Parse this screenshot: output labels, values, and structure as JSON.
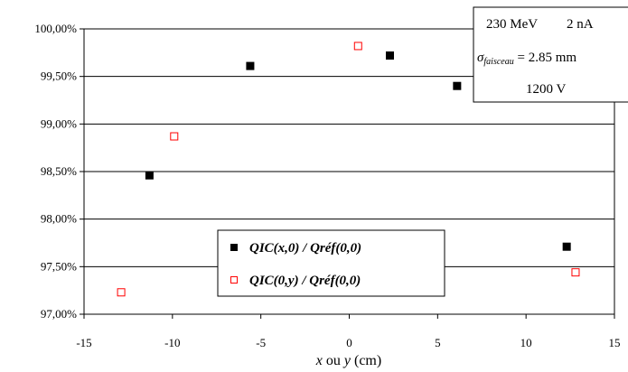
{
  "chart_data": {
    "type": "scatter",
    "x_ticks": [
      "-15",
      "-10",
      "-5",
      "0",
      "5",
      "10",
      "15"
    ],
    "y_ticks": [
      "97,00%",
      "97,50%",
      "98,00%",
      "98,50%",
      "99,00%",
      "99,50%",
      "100,00%"
    ],
    "xlim": [
      -15,
      15
    ],
    "ylim": [
      97.0,
      100.0
    ],
    "grid": {
      "horizontal": true,
      "vertical": false
    },
    "xlabel": {
      "var1": "x",
      "middle": " ou ",
      "var2": "y",
      "unit": " (cm)"
    },
    "legend_position": "bottom-center",
    "series": [
      {
        "name": "QIC(x,0) / Qréf(0,0)",
        "marker": "filled-square",
        "color": "#000000",
        "points": [
          {
            "x": -11.3,
            "y": 98.46
          },
          {
            "x": -5.6,
            "y": 99.61
          },
          {
            "x": 2.3,
            "y": 99.72
          },
          {
            "x": 6.1,
            "y": 99.4
          },
          {
            "x": 12.3,
            "y": 97.71
          }
        ]
      },
      {
        "name": "QIC(0,y) / Qréf(0,0)",
        "marker": "open-square",
        "color": "#ff0000",
        "points": [
          {
            "x": -12.9,
            "y": 97.23
          },
          {
            "x": -9.9,
            "y": 98.87
          },
          {
            "x": 0.5,
            "y": 99.82
          },
          {
            "x": 12.8,
            "y": 97.44
          }
        ]
      }
    ],
    "info_box": {
      "energy": "230 MeV",
      "current": "2 nA",
      "sigma": "σ",
      "sigma_sub": "faisceau",
      "sigma_value": " = 2.85 mm",
      "voltage": "1200 V"
    }
  }
}
